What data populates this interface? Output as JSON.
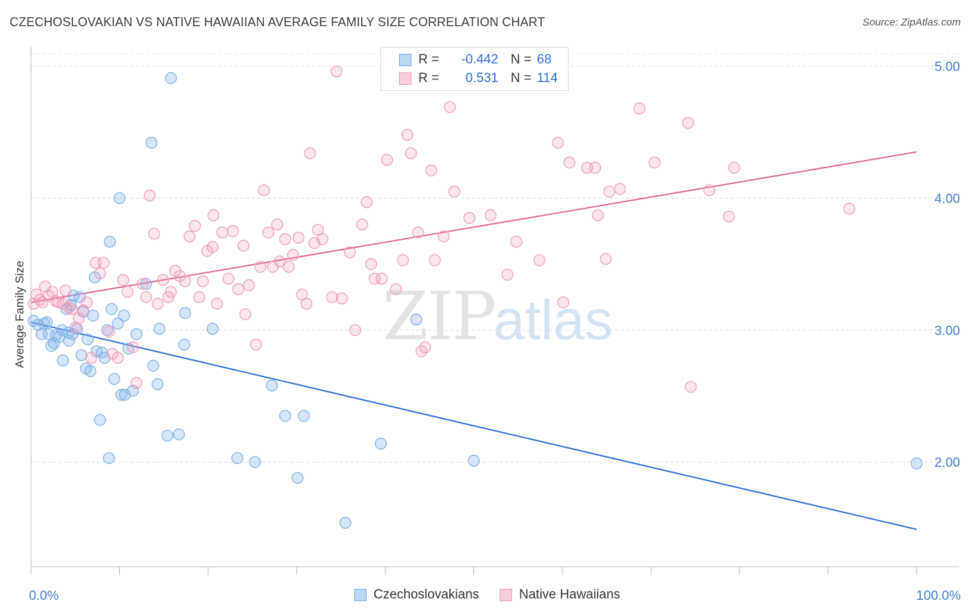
{
  "title": "CZECHOSLOVAKIAN VS NATIVE HAWAIIAN AVERAGE FAMILY SIZE CORRELATION CHART",
  "source": "Source: ZipAtlas.com",
  "watermark": {
    "zip": "ZIP",
    "atlas": "atlas"
  },
  "legend": {
    "rows": [
      {
        "r_label": "R =",
        "r_value": "-0.442",
        "n_label": "N =",
        "n_value": "68",
        "color": "#7eb0ea"
      },
      {
        "r_label": "R =",
        "r_value": "0.531",
        "n_label": "N =",
        "n_value": "114",
        "color": "#f19bb8"
      }
    ]
  },
  "bottom_legend": [
    "Czechoslovakians",
    "Native Hawaiians"
  ],
  "chart_data": {
    "type": "scatter",
    "title": "CZECHOSLOVAKIAN VS NATIVE HAWAIIAN AVERAGE FAMILY SIZE CORRELATION CHART",
    "xlabel": "",
    "ylabel": "Average Family Size",
    "x_tick_labels": [
      "0.0%",
      "100.0%"
    ],
    "y_tick_labels": [
      "2.00",
      "3.00",
      "4.00",
      "5.00"
    ],
    "xlim": [
      0,
      100
    ],
    "ylim": [
      1.05,
      5.1
    ],
    "grid": true,
    "series": [
      {
        "name": "Czechoslovakians",
        "color": "#7eb0ea",
        "line_color": "#2f6fd6",
        "trend": [
          [
            0,
            3.06
          ],
          [
            100,
            1.49
          ]
        ],
        "points": [
          [
            0.3,
            3.07
          ],
          [
            0.8,
            3.04
          ],
          [
            1.2,
            2.97
          ],
          [
            1.5,
            3.05
          ],
          [
            1.8,
            3.06
          ],
          [
            2.0,
            2.97
          ],
          [
            2.3,
            2.88
          ],
          [
            2.6,
            2.9
          ],
          [
            2.8,
            2.96
          ],
          [
            3.2,
            2.95
          ],
          [
            3.5,
            3.0
          ],
          [
            3.6,
            2.77
          ],
          [
            4.0,
            3.16
          ],
          [
            4.2,
            2.98
          ],
          [
            4.3,
            2.92
          ],
          [
            4.5,
            3.19
          ],
          [
            4.7,
            2.97
          ],
          [
            4.8,
            3.26
          ],
          [
            5.2,
            3.01
          ],
          [
            5.5,
            3.25
          ],
          [
            5.7,
            2.81
          ],
          [
            5.9,
            3.14
          ],
          [
            6.2,
            2.71
          ],
          [
            6.4,
            2.93
          ],
          [
            6.7,
            2.69
          ],
          [
            7.0,
            3.11
          ],
          [
            7.2,
            3.4
          ],
          [
            7.4,
            2.84
          ],
          [
            7.8,
            2.32
          ],
          [
            8.0,
            2.83
          ],
          [
            8.3,
            2.79
          ],
          [
            8.6,
            3.0
          ],
          [
            8.8,
            2.03
          ],
          [
            8.9,
            3.67
          ],
          [
            9.1,
            3.16
          ],
          [
            9.4,
            2.63
          ],
          [
            9.8,
            3.05
          ],
          [
            10.0,
            4.0
          ],
          [
            10.2,
            2.51
          ],
          [
            10.5,
            3.11
          ],
          [
            10.6,
            2.51
          ],
          [
            11.0,
            2.86
          ],
          [
            11.5,
            2.54
          ],
          [
            11.9,
            2.97
          ],
          [
            13.0,
            3.35
          ],
          [
            13.6,
            4.42
          ],
          [
            13.8,
            2.73
          ],
          [
            14.3,
            2.59
          ],
          [
            14.5,
            3.01
          ],
          [
            15.4,
            2.2
          ],
          [
            15.8,
            4.91
          ],
          [
            16.7,
            2.21
          ],
          [
            17.3,
            2.89
          ],
          [
            17.4,
            3.13
          ],
          [
            20.5,
            3.01
          ],
          [
            23.3,
            2.03
          ],
          [
            25.3,
            2.0
          ],
          [
            27.2,
            2.58
          ],
          [
            28.7,
            2.35
          ],
          [
            30.1,
            1.88
          ],
          [
            30.8,
            2.35
          ],
          [
            35.5,
            1.54
          ],
          [
            39.5,
            2.14
          ],
          [
            43.5,
            3.08
          ],
          [
            50.0,
            2.01
          ],
          [
            100.0,
            1.99
          ]
        ]
      },
      {
        "name": "Native Hawaiians",
        "color": "#f19bb8",
        "line_color": "#e06a94",
        "trend": [
          [
            0,
            3.21
          ],
          [
            100,
            4.35
          ]
        ],
        "points": [
          [
            0.3,
            3.2
          ],
          [
            0.6,
            3.27
          ],
          [
            1.0,
            3.23
          ],
          [
            1.3,
            3.21
          ],
          [
            1.6,
            3.33
          ],
          [
            2.0,
            3.26
          ],
          [
            2.4,
            3.29
          ],
          [
            2.8,
            3.22
          ],
          [
            3.1,
            3.21
          ],
          [
            3.6,
            3.2
          ],
          [
            3.9,
            3.3
          ],
          [
            4.3,
            3.17
          ],
          [
            4.6,
            3.16
          ],
          [
            5.0,
            3.02
          ],
          [
            5.4,
            3.09
          ],
          [
            5.9,
            3.15
          ],
          [
            6.3,
            3.21
          ],
          [
            6.8,
            2.79
          ],
          [
            7.3,
            3.51
          ],
          [
            7.8,
            3.43
          ],
          [
            8.2,
            3.51
          ],
          [
            8.8,
            2.99
          ],
          [
            9.2,
            2.82
          ],
          [
            9.8,
            2.79
          ],
          [
            10.4,
            3.38
          ],
          [
            10.9,
            3.29
          ],
          [
            11.5,
            2.87
          ],
          [
            11.9,
            2.6
          ],
          [
            12.6,
            3.35
          ],
          [
            13.0,
            3.25
          ],
          [
            13.4,
            4.02
          ],
          [
            13.9,
            3.73
          ],
          [
            14.3,
            3.2
          ],
          [
            14.9,
            3.38
          ],
          [
            15.5,
            3.25
          ],
          [
            15.8,
            3.29
          ],
          [
            16.3,
            3.45
          ],
          [
            16.8,
            3.41
          ],
          [
            17.4,
            3.37
          ],
          [
            17.9,
            3.71
          ],
          [
            18.5,
            3.79
          ],
          [
            19.0,
            3.25
          ],
          [
            19.4,
            3.37
          ],
          [
            19.9,
            3.6
          ],
          [
            20.5,
            3.63
          ],
          [
            20.6,
            3.87
          ],
          [
            21.0,
            3.2
          ],
          [
            21.6,
            3.74
          ],
          [
            22.3,
            3.39
          ],
          [
            22.8,
            3.75
          ],
          [
            23.4,
            3.31
          ],
          [
            24.0,
            3.64
          ],
          [
            24.2,
            3.12
          ],
          [
            24.6,
            3.34
          ],
          [
            25.4,
            2.89
          ],
          [
            25.9,
            3.48
          ],
          [
            26.3,
            4.06
          ],
          [
            26.8,
            3.74
          ],
          [
            27.3,
            3.48
          ],
          [
            27.8,
            3.8
          ],
          [
            28.1,
            3.52
          ],
          [
            28.7,
            3.69
          ],
          [
            29.1,
            3.48
          ],
          [
            29.6,
            3.57
          ],
          [
            30.2,
            3.7
          ],
          [
            30.6,
            3.27
          ],
          [
            31.1,
            3.2
          ],
          [
            31.5,
            4.34
          ],
          [
            32.0,
            3.66
          ],
          [
            32.4,
            3.76
          ],
          [
            32.9,
            3.69
          ],
          [
            34.0,
            3.25
          ],
          [
            34.5,
            4.96
          ],
          [
            35.1,
            3.24
          ],
          [
            36.0,
            3.59
          ],
          [
            36.6,
            3.0
          ],
          [
            37.4,
            3.8
          ],
          [
            37.9,
            3.97
          ],
          [
            38.4,
            3.5
          ],
          [
            38.8,
            3.39
          ],
          [
            39.6,
            3.39
          ],
          [
            40.2,
            4.29
          ],
          [
            41.2,
            3.31
          ],
          [
            42.0,
            3.53
          ],
          [
            42.5,
            4.48
          ],
          [
            42.9,
            4.34
          ],
          [
            43.7,
            3.74
          ],
          [
            44.1,
            2.84
          ],
          [
            44.5,
            2.87
          ],
          [
            45.2,
            4.21
          ],
          [
            45.6,
            3.53
          ],
          [
            46.6,
            3.71
          ],
          [
            47.3,
            4.69
          ],
          [
            47.8,
            4.05
          ],
          [
            49.5,
            3.85
          ],
          [
            51.9,
            3.87
          ],
          [
            53.8,
            3.42
          ],
          [
            54.8,
            3.67
          ],
          [
            57.4,
            3.53
          ],
          [
            59.5,
            4.42
          ],
          [
            60.1,
            3.21
          ],
          [
            60.8,
            4.27
          ],
          [
            62.8,
            4.23
          ],
          [
            63.7,
            4.23
          ],
          [
            64.0,
            3.87
          ],
          [
            64.9,
            3.54
          ],
          [
            65.3,
            4.05
          ],
          [
            66.5,
            4.07
          ],
          [
            68.7,
            4.68
          ],
          [
            70.4,
            4.27
          ],
          [
            74.2,
            4.57
          ],
          [
            74.5,
            2.57
          ],
          [
            76.6,
            4.06
          ],
          [
            78.8,
            3.86
          ],
          [
            79.4,
            4.23
          ],
          [
            92.4,
            3.92
          ]
        ]
      }
    ]
  }
}
